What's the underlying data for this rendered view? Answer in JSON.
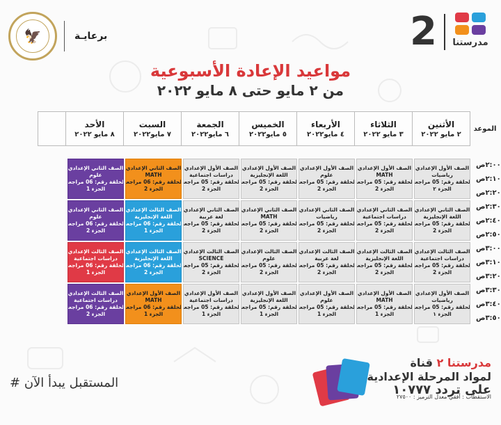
{
  "header": {
    "sponsor_label": "برعايـة",
    "seal_text": "MINISTRY OF EDUCATION AND TECHNICAL EDUCATION",
    "logo_number": "2",
    "logo_name": "مدرستنا",
    "logo_colors": [
      "#e03a46",
      "#2aa0db",
      "#f2901c",
      "#6a3fa0"
    ]
  },
  "title": "مواعيد الإعادة الأسبوعية",
  "subtitle": "من ٢ مايو حتى ٨ مايو ٢٠٢٢",
  "table": {
    "time_header": "الموعد",
    "days": [
      {
        "day": "الأثنين",
        "date": "٢ مايو ٢٠٢٢"
      },
      {
        "day": "الثلاثاء",
        "date": "٣ مايو ٢٠٢٢"
      },
      {
        "day": "الأربعاء",
        "date": "٤ مايو٢٠٢٢"
      },
      {
        "day": "الخميس",
        "date": "٥ مايو٢٠٢٢"
      },
      {
        "day": "الجمعة",
        "date": "٦ مايو٢٠٢٢"
      },
      {
        "day": "السبت",
        "date": "٧ مايو٢٠٢٢"
      },
      {
        "day": "الأحد",
        "date": "٨ مايو ٢٠٢٢"
      }
    ],
    "times": [
      "٢:٠٠ص",
      "٢:١٠ص",
      "٢:٢٠ص",
      "٢:٣٠ص",
      "٢:٤٠ص",
      "٢:٥٠ص",
      "٣:٠٠ص",
      "٣:١٠ص",
      "٣:٢٠ص",
      "٣:٣٠ص",
      "٣:٤٠ص",
      "٣:٥٠ص"
    ],
    "rows": [
      [
        {
          "grade": "الصف الأول الإعدادي",
          "subject": "رياضيات",
          "episode": "الحلقة رقم: 05 مراجعة",
          "part": "الجزء ٢",
          "color": "gray"
        },
        {
          "grade": "الصف الأول الإعدادي",
          "subject": "MATH",
          "episode": "الحلقة رقم: 05 مراجعة",
          "part": "الجزء 2",
          "color": "gray"
        },
        {
          "grade": "الصف الأول الإعدادي",
          "subject": "علوم",
          "episode": "الحلقة رقم: 05 مراجعة",
          "part": "الجزء 2",
          "color": "gray"
        },
        {
          "grade": "الصف الأول الإعدادي",
          "subject": "اللغة الإنجليزية",
          "episode": "الحلقة رقم: 05 مراجعة",
          "part": "الجزء 2",
          "color": "gray"
        },
        {
          "grade": "الصف الأول الإعدادي",
          "subject": "دراسات اجتماعية",
          "episode": "الحلقة رقم: 05 مراجعة",
          "part": "الجزء 2",
          "color": "gray"
        },
        {
          "grade": "الصف الثاني الإعدادي",
          "subject": "MATH",
          "episode": "الحلقة رقم: 06 مراجعة",
          "part": "الجزء 2",
          "color": "orange"
        },
        {
          "grade": "الصف الثاني الإعدادي",
          "subject": "علوم",
          "episode": "الحلقة رقم: 06 مراجعة",
          "part": "الجزء 1",
          "color": "purple"
        }
      ],
      [
        {
          "grade": "الصف الثاني الإعدادي",
          "subject": "اللغة الإنجليزية",
          "episode": "الحلقة رقم: 05 مراجعة",
          "part": "الجزء 2",
          "color": "gray"
        },
        {
          "grade": "الصف الثاني الإعدادي",
          "subject": "دراسات اجتماعية",
          "episode": "الحلقة رقم: 05 مراجعة",
          "part": "الجزء 2",
          "color": "gray"
        },
        {
          "grade": "الصف الثاني الإعدادي",
          "subject": "رياضيات",
          "episode": "الحلقة رقم: 05 مراجعة",
          "part": "الجزء 2",
          "color": "gray"
        },
        {
          "grade": "الصف الثاني الإعدادي",
          "subject": "MATH",
          "episode": "الحلقة رقم: 05 مراجعة",
          "part": "الجزء 2",
          "color": "gray"
        },
        {
          "grade": "الصف الثاني الإعدادي",
          "subject": "لغة عربية",
          "episode": "الحلقة رقم: 05 مراجعة",
          "part": "الجزء 2",
          "color": "gray"
        },
        {
          "grade": "الصف الثالث الإعدادي",
          "subject": "اللغة الإنجليزية",
          "episode": "الحلقة رقم: 06 مراجعة",
          "part": "الجزء 1",
          "color": "blue"
        },
        {
          "grade": "الصف الثاني الإعدادي",
          "subject": "علوم",
          "episode": "الحلقة رقم: 06 مراجعة",
          "part": "الجزء 2",
          "color": "purple"
        }
      ],
      [
        {
          "grade": "الصف الثالث الإعدادي",
          "subject": "دراسات اجتماعية",
          "episode": "الحلقة رقم: 05 مراجعة",
          "part": "الجزء 2",
          "color": "gray"
        },
        {
          "grade": "الصف الثالث الإعدادي",
          "subject": "اللغة الإنجليزية",
          "episode": "الحلقة رقم: 05 مراجعة",
          "part": "الجزء 2",
          "color": "gray"
        },
        {
          "grade": "الصف الثالث الإعدادي",
          "subject": "لغة عربية",
          "episode": "الحلقة رقم: 05 مراجعة",
          "part": "الجزء 2",
          "color": "gray"
        },
        {
          "grade": "الصف الثالث الإعدادي",
          "subject": "علوم",
          "episode": "الحلقة رقم: 05 مراجعة",
          "part": "الجزء 2",
          "color": "gray"
        },
        {
          "grade": "الصف الثالث الإعدادي",
          "subject": "SCIENCE",
          "episode": "الحلقة رقم: 05 مراجعة",
          "part": "الجزء 2",
          "color": "gray"
        },
        {
          "grade": "الصف الثالث الإعدادي",
          "subject": "اللغة الإنجليزية",
          "episode": "الحلقة رقم: 06 مراجعة",
          "part": "الجزء 2",
          "color": "blue"
        },
        {
          "grade": "الصف الثالث الإعدادي",
          "subject": "دراسات اجتماعية",
          "episode": "الحلقة رقم: 06 مراجعة",
          "part": "الجزء 1",
          "color": "red"
        }
      ],
      [
        {
          "grade": "الصف الأول الإعدادي",
          "subject": "رياضيات",
          "episode": "الحلقة رقم: 05 مراجعة",
          "part": "الجزء ١",
          "color": "gray"
        },
        {
          "grade": "الصف الأول الإعدادي",
          "subject": "MATH",
          "episode": "الحلقة رقم: 05 مراجعة",
          "part": "الجزء 1",
          "color": "gray"
        },
        {
          "grade": "الصف الأول الإعدادي",
          "subject": "علوم",
          "episode": "الحلقة رقم: 05 مراجعة",
          "part": "الجزء 1",
          "color": "gray"
        },
        {
          "grade": "الصف الأول الإعدادي",
          "subject": "اللغة الإنجليزية",
          "episode": "الحلقة رقم: 05 مراجعة",
          "part": "الجزء 1",
          "color": "gray"
        },
        {
          "grade": "الصف الأول الإعدادي",
          "subject": "دراسات اجتماعية",
          "episode": "الحلقة رقم: 05 مراجعة",
          "part": "الجزء 1",
          "color": "gray"
        },
        {
          "grade": "الصف الأول الإعدادي",
          "subject": "MATH",
          "episode": "الحلقة رقم: 06 مراجعة",
          "part": "الجزء 1",
          "color": "orange"
        },
        {
          "grade": "الصف الثالث الإعدادي",
          "subject": "دراسات اجتماعية",
          "episode": "الحلقة رقم: 06 مراجعة",
          "part": "الجزء 2",
          "color": "purple"
        }
      ]
    ]
  },
  "footer": {
    "slogan": "# المستقبل يبدأ الآن",
    "channel_prefix": "قناة",
    "channel_name": "مدرستنا ٢",
    "channel_line2": "لمواد المرحلة الإعدادية",
    "channel_line3": "على تردد ١٠٧٧٧",
    "channel_line4": "الاستقطاب : أفقي معدل الترميز : ٢٧٥٠٠"
  }
}
